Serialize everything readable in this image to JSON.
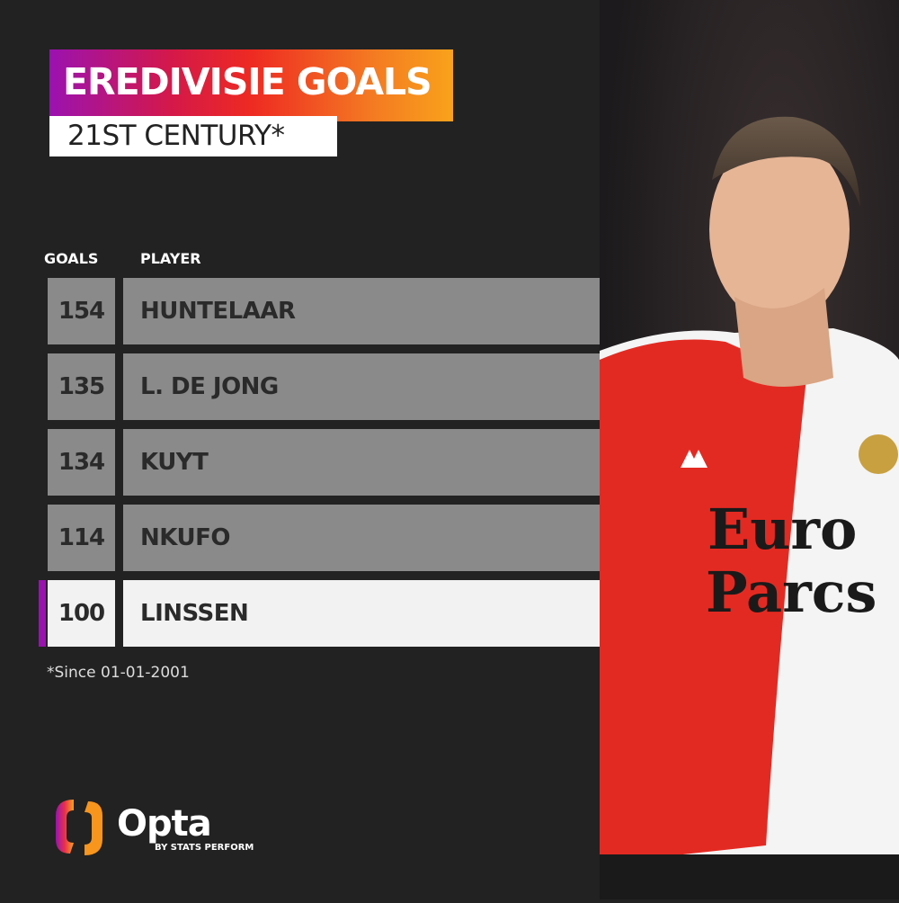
{
  "header": {
    "title": "EREDIVISIE GOALS",
    "subtitle": "21ST CENTURY*"
  },
  "chart_data": {
    "type": "table",
    "columns": [
      "GOALS",
      "PLAYER"
    ],
    "rows": [
      {
        "goals": "154",
        "player": "HUNTELAAR"
      },
      {
        "goals": "135",
        "player": "L. DE JONG"
      },
      {
        "goals": "134",
        "player": "KUYT"
      },
      {
        "goals": "114",
        "player": "NKUFO"
      },
      {
        "goals": "100",
        "player": "LINSSEN",
        "highlighted": true
      }
    ]
  },
  "footnote": "*Since 01-01-2001",
  "brand": {
    "name": "Opta",
    "tagline": "BY STATS PERFORM"
  },
  "colors": {
    "accent": "#9b12b0",
    "gradient_end": "#f9a21b",
    "row": "#8a8a8a",
    "highlight_row": "#f2f2f2",
    "background": "#222222"
  },
  "photo": {
    "shirt_text": "Euro Parcs",
    "kit_brand": "adidas"
  }
}
